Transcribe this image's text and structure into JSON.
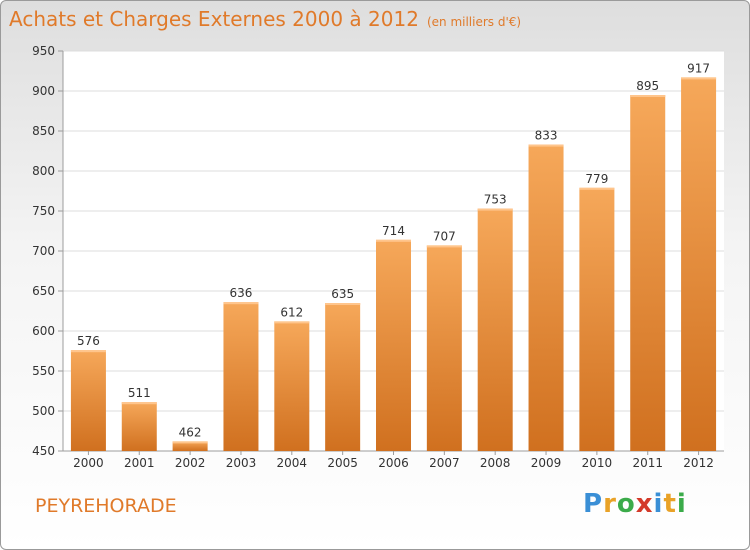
{
  "header": {
    "title": "Achats et Charges Externes 2000 à 2012",
    "unit": "(en milliers d'€)"
  },
  "footer": {
    "commune": "PEYREHORADE"
  },
  "logo": {
    "text": "Proxiti",
    "letters": [
      {
        "char": "P",
        "color": "#3a8fd6"
      },
      {
        "char": "r",
        "color": "#e9a227"
      },
      {
        "char": "o",
        "color": "#3bab4a"
      },
      {
        "char": "x",
        "color": "#d43a2a"
      },
      {
        "char": "i",
        "color": "#3a8fd6"
      },
      {
        "char": "t",
        "color": "#e9a227"
      },
      {
        "char": "i",
        "color": "#3bab4a"
      }
    ]
  },
  "chart_data": {
    "type": "bar",
    "title": "Achats et Charges Externes 2000 à 2012",
    "subtitle": "(en milliers d'€)",
    "xlabel": "",
    "ylabel": "",
    "categories": [
      "2000",
      "2001",
      "2002",
      "2003",
      "2004",
      "2005",
      "2006",
      "2007",
      "2008",
      "2009",
      "2010",
      "2011",
      "2012"
    ],
    "values": [
      576,
      511,
      462,
      636,
      612,
      635,
      714,
      707,
      753,
      833,
      779,
      895,
      917
    ],
    "ylim": [
      450,
      950
    ],
    "yticks": [
      450,
      500,
      550,
      600,
      650,
      700,
      750,
      800,
      850,
      900,
      950
    ],
    "grid": true,
    "legend": "none",
    "colors": {
      "bar_top": "#f6a85a",
      "bar_bottom": "#d0701f",
      "grid": "#dcdcdc",
      "axis": "#9c9c9c",
      "label_text": "#333333"
    }
  }
}
